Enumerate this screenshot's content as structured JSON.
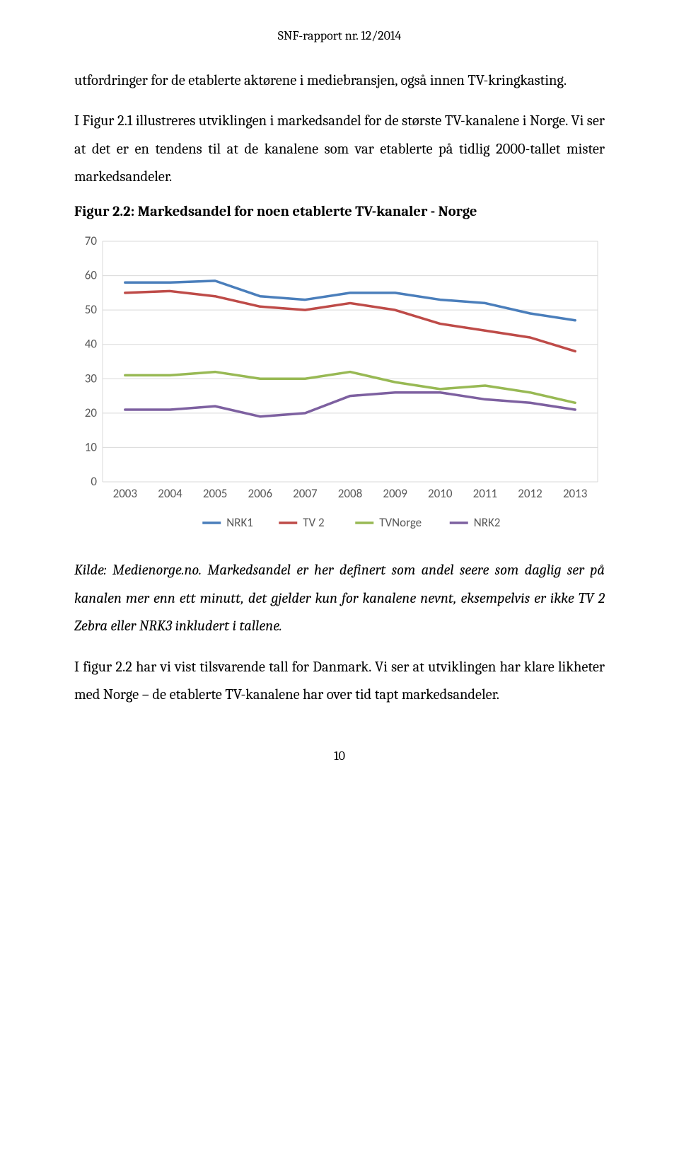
{
  "header": {
    "title": "SNF-rapport nr. 12/2014"
  },
  "paragraphs": {
    "p1": "utfordringer for de etablerte aktørene i mediebransjen, også innen TV-kringkasting.",
    "p2": "I Figur 2.1 illustreres utviklingen i markedsandel for de største TV-kanalene i Norge. Vi ser at det er en tendens til at de kanalene som var etablerte på tidlig 2000-tallet mister markedsandeler."
  },
  "figure": {
    "caption": "Figur 2.2: Markedsandel for noen etablerte TV-kanaler - Norge"
  },
  "chart": {
    "type": "line",
    "categories": [
      "2003",
      "2004",
      "2005",
      "2006",
      "2007",
      "2008",
      "2009",
      "2010",
      "2011",
      "2012",
      "2013"
    ],
    "y_ticks": [
      0,
      10,
      20,
      30,
      40,
      50,
      60,
      70
    ],
    "ylim": [
      0,
      70
    ],
    "series": [
      {
        "name": "NRK1",
        "color": "#4a7ebb",
        "values": [
          58,
          58,
          58.5,
          54,
          53,
          55,
          55,
          53,
          52,
          49,
          47
        ]
      },
      {
        "name": "TV 2",
        "color": "#be4b48",
        "values": [
          55,
          55.5,
          54,
          51,
          50,
          52,
          50,
          46,
          44,
          42,
          38
        ]
      },
      {
        "name": "TVNorge",
        "color": "#98b954",
        "values": [
          31,
          31,
          32,
          30,
          30,
          32,
          29,
          27,
          28,
          26,
          23
        ]
      },
      {
        "name": "NRK2",
        "color": "#7d60a0",
        "values": [
          21,
          21,
          22,
          19,
          20,
          25,
          26,
          26,
          24,
          23,
          21
        ]
      }
    ],
    "axis_text_color": "#595959",
    "grid_color": "#d9d9d9",
    "background_color": "#ffffff",
    "legend_line_length": 26
  },
  "kilde": {
    "text": "Kilde: Medienorge.no. Markedsandel er her definert som andel seere som daglig ser på kanalen mer enn ett minutt, det gjelder kun for kanalene nevnt, eksempelvis er ikke TV 2 Zebra eller NRK3 inkludert i tallene."
  },
  "paragraphs2": {
    "p3": "I figur 2.2 har vi vist tilsvarende tall for Danmark. Vi ser at utviklingen har klare likheter med Norge – de etablerte TV-kanalene har over tid tapt markedsandeler."
  },
  "page_number": "10"
}
